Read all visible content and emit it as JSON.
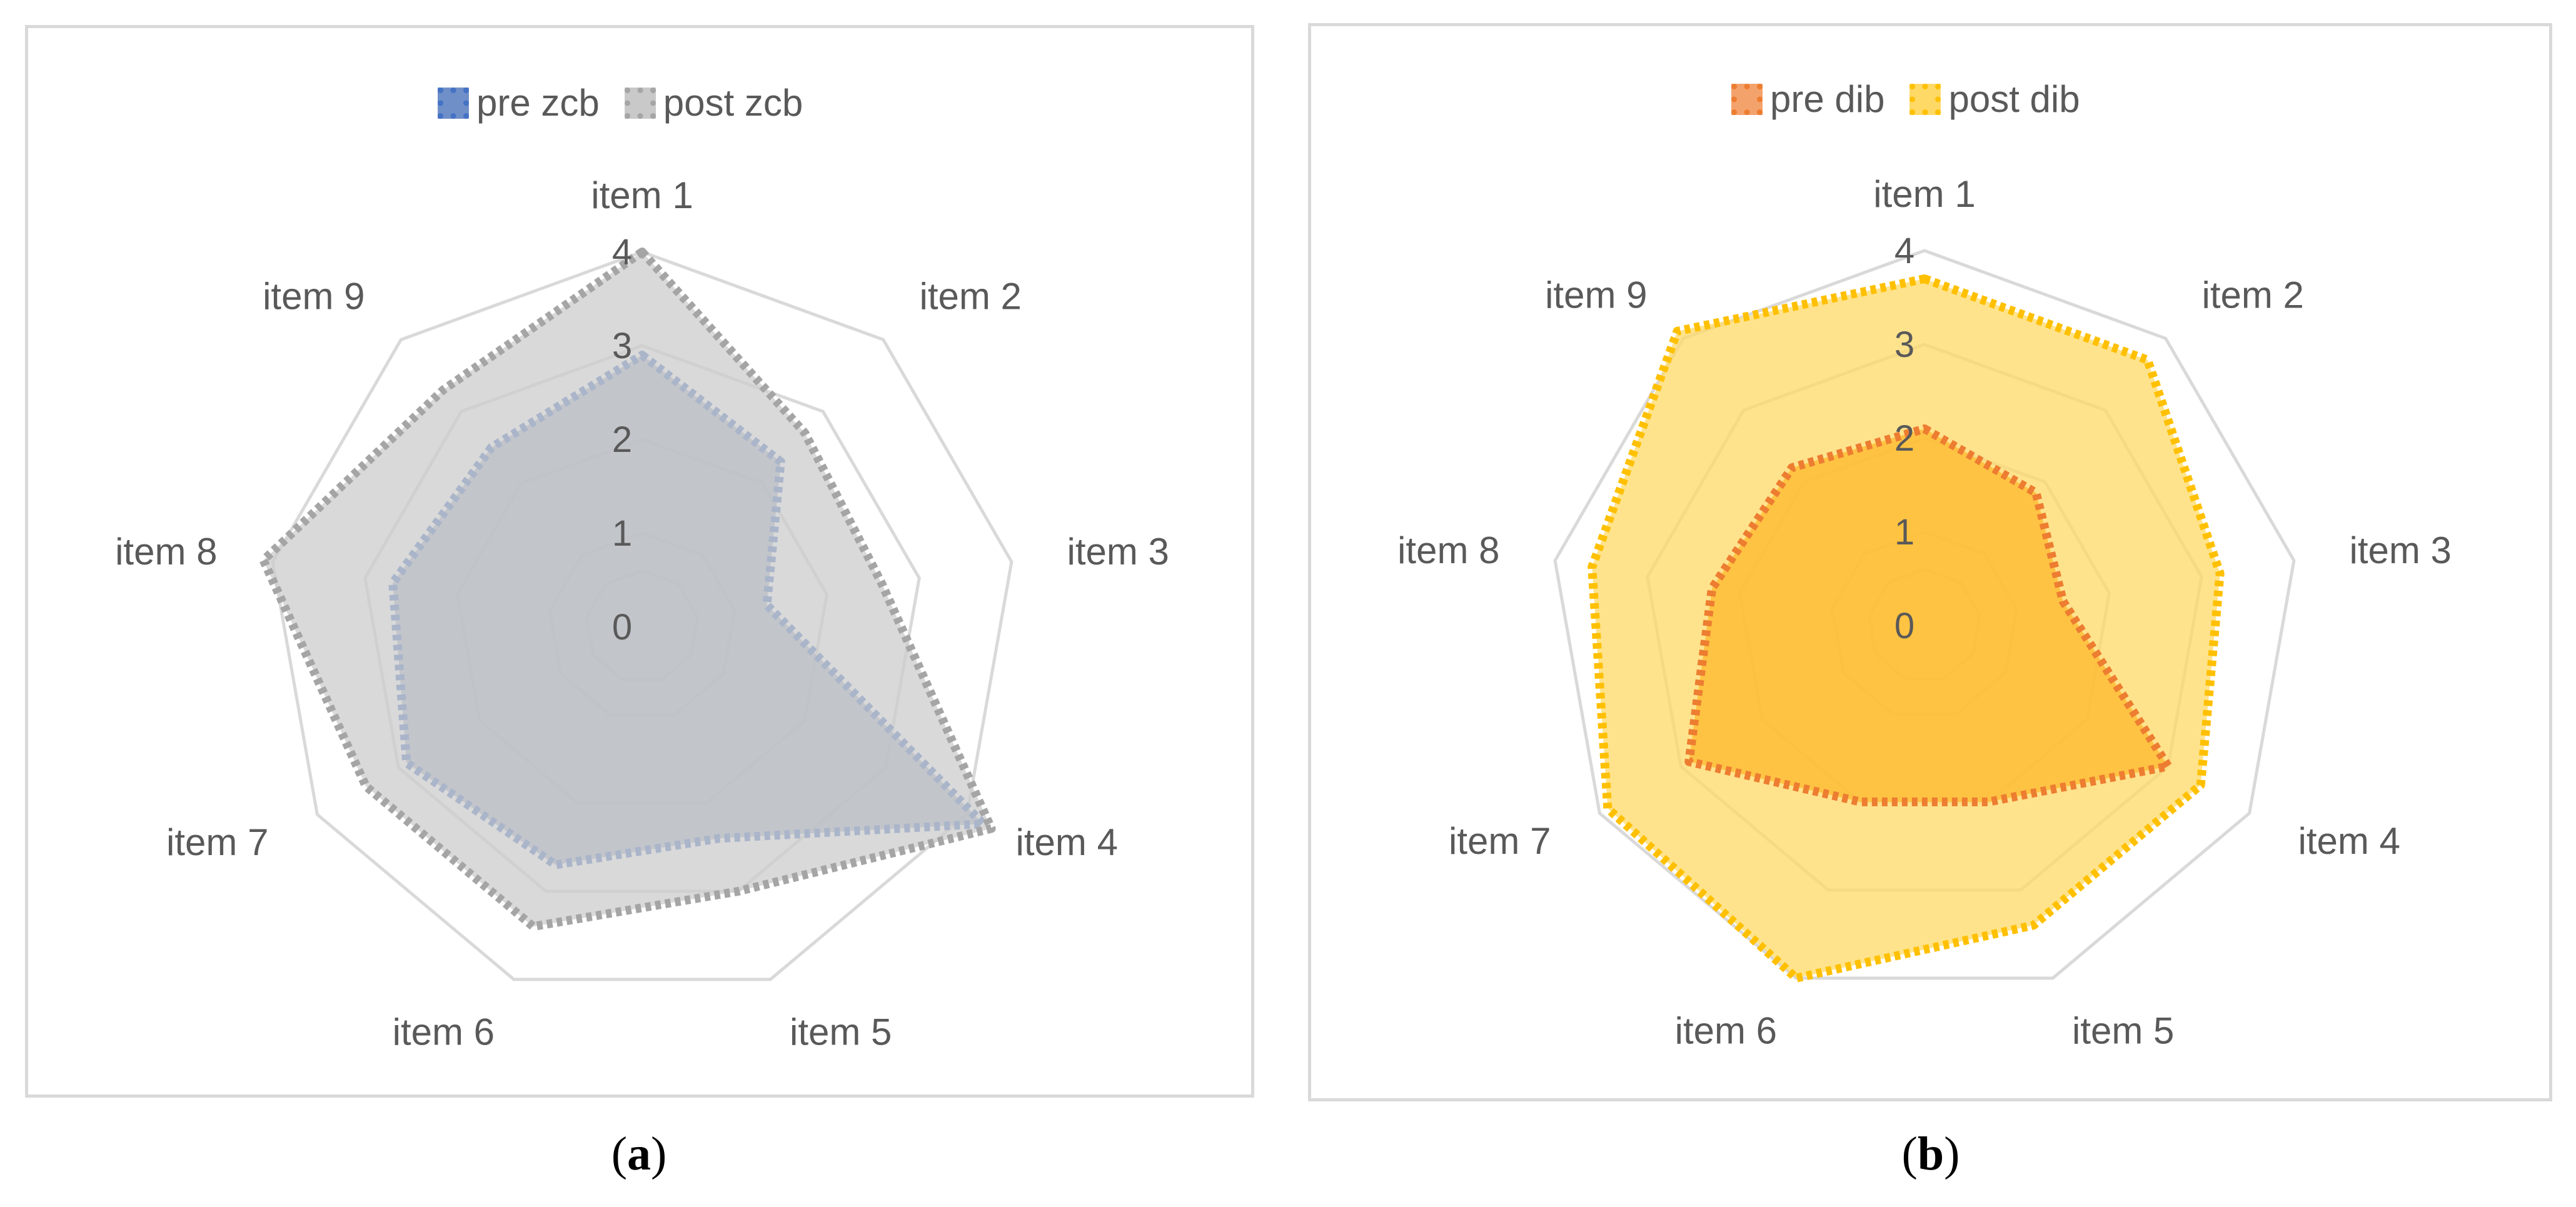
{
  "chart_data": [
    {
      "type": "radar",
      "panel_label": "a",
      "categories": [
        "item 1",
        "item 2",
        "item 3",
        "item 4",
        "item 5",
        "item 6",
        "item 7",
        "item 8",
        "item 9"
      ],
      "ticks": [
        "0",
        "1",
        "2",
        "3",
        "4"
      ],
      "rlim": [
        0,
        4
      ],
      "legend_position": "top",
      "series": [
        {
          "name": "pre zcb",
          "values": [
            2.9,
            2.3,
            1.35,
            4.2,
            2.4,
            2.7,
            2.9,
            2.7,
            2.5
          ],
          "color": "#4472c4",
          "fill": "#8497b0"
        },
        {
          "name": "post zcb",
          "values": [
            4.0,
            2.7,
            2.6,
            4.3,
            3.0,
            3.4,
            3.4,
            4.1,
            3.3
          ],
          "color": "#a5a5a5",
          "fill": "#cccccc"
        }
      ]
    },
    {
      "type": "radar",
      "panel_label": "b",
      "categories": [
        "item 1",
        "item 2",
        "item 3",
        "item 4",
        "item 5",
        "item 6",
        "item 7",
        "item 8",
        "item 9"
      ],
      "ticks": [
        "0",
        "1",
        "2",
        "3",
        "4"
      ],
      "rlim": [
        0,
        4
      ],
      "legend_position": "top",
      "series": [
        {
          "name": "post dib",
          "values": [
            3.7,
            3.7,
            3.2,
            3.4,
            3.4,
            4.0,
            3.9,
            3.6,
            4.1
          ],
          "color": "#ffc000",
          "fill": "#ffd966"
        },
        {
          "name": "pre dib",
          "values": [
            2.1,
            1.85,
            1.5,
            3.0,
            2.0,
            2.0,
            2.9,
            2.3,
            2.2
          ],
          "color": "#ed7d31",
          "fill": "#ffb82b"
        }
      ]
    }
  ],
  "captions": {
    "a": "a",
    "b": "b"
  },
  "legend_a": [
    "pre zcb",
    "post zcb"
  ],
  "legend_b": [
    "pre dib",
    "post dib"
  ]
}
